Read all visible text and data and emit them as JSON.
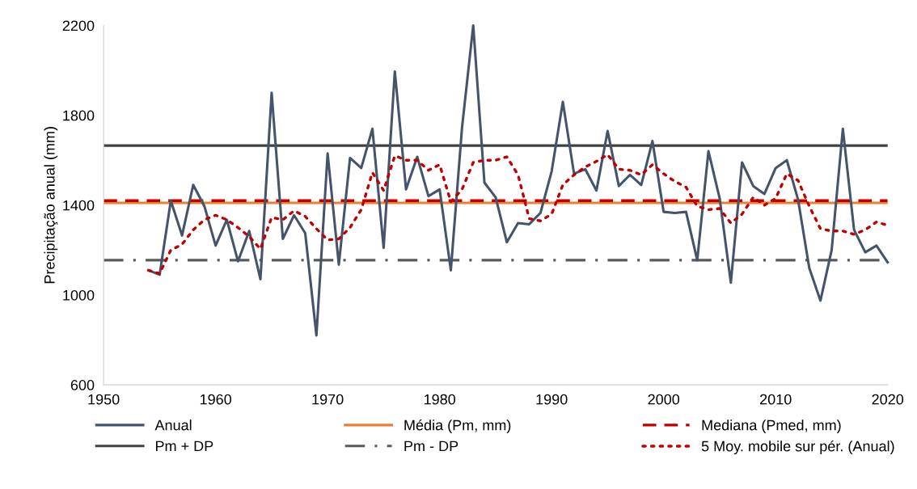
{
  "chart_data": {
    "type": "line",
    "ylabel": "Precipitação anual (mm)",
    "xlim": [
      1950,
      2020
    ],
    "xticks": [
      1950,
      1960,
      1970,
      1980,
      1990,
      2000,
      2010,
      2020
    ],
    "ylim": [
      600,
      2200
    ],
    "yticks": [
      600,
      1000,
      1400,
      1800,
      2200
    ],
    "grid": false,
    "legend": "bottom",
    "marker": "none",
    "series": [
      {
        "name": "Anual",
        "color": "#44546a",
        "line_style": "solid",
        "x": [
          1954,
          1955,
          1956,
          1957,
          1958,
          1959,
          1960,
          1961,
          1962,
          1963,
          1964,
          1965,
          1966,
          1967,
          1968,
          1969,
          1970,
          1971,
          1972,
          1973,
          1974,
          1975,
          1976,
          1977,
          1978,
          1979,
          1980,
          1981,
          1982,
          1983,
          1984,
          1985,
          1986,
          1987,
          1988,
          1989,
          1990,
          1991,
          1992,
          1993,
          1994,
          1995,
          1996,
          1997,
          1998,
          1999,
          2000,
          2001,
          2002,
          2003,
          2004,
          2005,
          2006,
          2007,
          2008,
          2009,
          2010,
          2011,
          2012,
          2013,
          2014,
          2015,
          2016,
          2017,
          2018,
          2019,
          2020
        ],
        "values": [
          1110,
          1090,
          1420,
          1265,
          1490,
          1395,
          1220,
          1335,
          1150,
          1285,
          1070,
          1900,
          1250,
          1355,
          1275,
          820,
          1630,
          1135,
          1610,
          1565,
          1740,
          1210,
          1995,
          1470,
          1615,
          1440,
          1470,
          1110,
          1745,
          2200,
          1500,
          1435,
          1235,
          1320,
          1315,
          1365,
          1550,
          1860,
          1540,
          1560,
          1465,
          1730,
          1485,
          1535,
          1490,
          1685,
          1370,
          1365,
          1370,
          1155,
          1640,
          1430,
          1055,
          1590,
          1485,
          1450,
          1565,
          1600,
          1425,
          1120,
          975,
          1200,
          1740,
          1290,
          1190,
          1220,
          1145
        ]
      },
      {
        "name": "5 Moy. mobile sur pér. (Anual)",
        "color": "#c00000",
        "line_style": "dotted",
        "x": [
          1954,
          1955,
          1956,
          1957,
          1958,
          1959,
          1960,
          1961,
          1962,
          1963,
          1964,
          1965,
          1966,
          1967,
          1968,
          1969,
          1970,
          1971,
          1972,
          1973,
          1974,
          1975,
          1976,
          1977,
          1978,
          1979,
          1980,
          1981,
          1982,
          1983,
          1984,
          1985,
          1986,
          1987,
          1988,
          1989,
          1990,
          1991,
          1992,
          1993,
          1994,
          1995,
          1996,
          1997,
          1998,
          1999,
          2000,
          2001,
          2002,
          2003,
          2004,
          2005,
          2006,
          2007,
          2008,
          2009,
          2010,
          2011,
          2012,
          2013,
          2014,
          2015,
          2016,
          2017,
          2018,
          2019,
          2020
        ],
        "values": [
          1110,
          1095,
          1200,
          1225,
          1290,
          1335,
          1355,
          1335,
          1300,
          1260,
          1205,
          1345,
          1335,
          1375,
          1350,
          1295,
          1245,
          1250,
          1300,
          1380,
          1545,
          1465,
          1620,
          1600,
          1600,
          1555,
          1580,
          1415,
          1470,
          1590,
          1600,
          1600,
          1615,
          1535,
          1340,
          1330,
          1360,
          1490,
          1535,
          1570,
          1595,
          1625,
          1560,
          1555,
          1535,
          1580,
          1540,
          1505,
          1480,
          1395,
          1380,
          1385,
          1320,
          1360,
          1435,
          1400,
          1430,
          1540,
          1510,
          1395,
          1295,
          1285,
          1285,
          1270,
          1290,
          1325,
          1310
        ]
      }
    ],
    "ref_lines": [
      {
        "axis": "y",
        "value": 1410,
        "label": "Média (Pm, mm)",
        "color": "#ed7d31",
        "line_style": "solid"
      },
      {
        "axis": "y",
        "value": 1420,
        "label": "Mediana (Pmed, mm)",
        "color": "#c00000",
        "line_style": "dashed"
      },
      {
        "axis": "y",
        "value": 1665,
        "label": "Pm + DP",
        "color": "#404040",
        "line_style": "solid"
      },
      {
        "axis": "y",
        "value": 1155,
        "label": "Pm - DP",
        "color": "#595959",
        "line_style": "dashdot"
      }
    ]
  }
}
